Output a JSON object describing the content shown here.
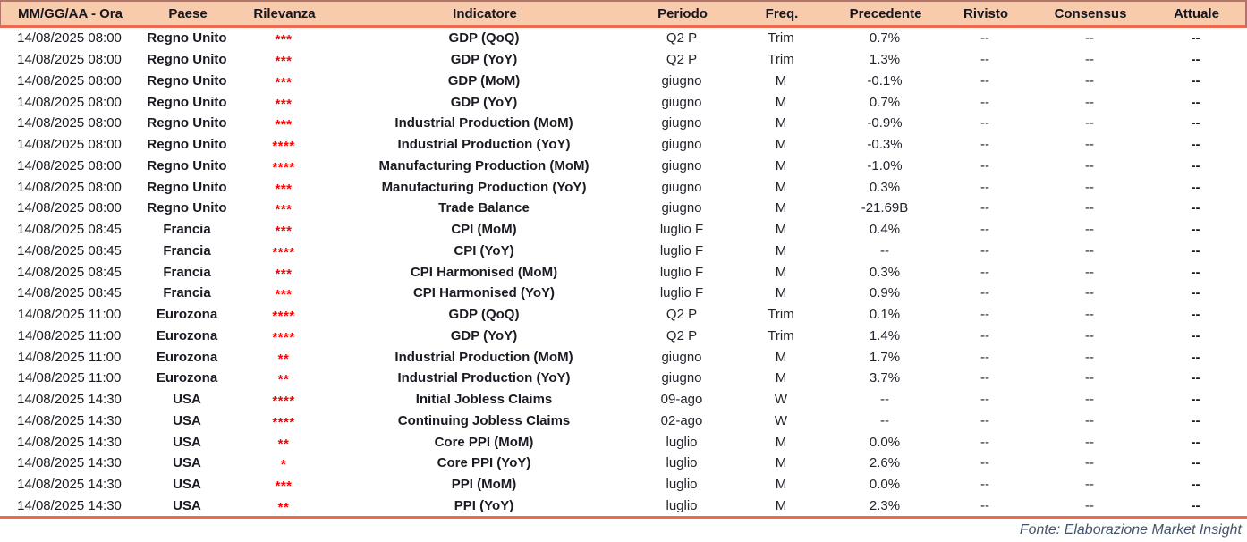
{
  "table": {
    "columns": [
      {
        "key": "datetime",
        "label": "MM/GG/AA - Ora"
      },
      {
        "key": "paese",
        "label": "Paese"
      },
      {
        "key": "rilevanza",
        "label": "Rilevanza"
      },
      {
        "key": "indicatore",
        "label": "Indicatore"
      },
      {
        "key": "periodo",
        "label": "Periodo"
      },
      {
        "key": "freq",
        "label": "Freq."
      },
      {
        "key": "precedente",
        "label": "Precedente"
      },
      {
        "key": "rivisto",
        "label": "Rivisto"
      },
      {
        "key": "consensus",
        "label": "Consensus"
      },
      {
        "key": "attuale",
        "label": "Attuale"
      }
    ],
    "rows": [
      {
        "datetime": "14/08/2025 08:00",
        "paese": "Regno Unito",
        "rilevanza": "***",
        "indicatore": "GDP (QoQ)",
        "periodo": "Q2 P",
        "freq": "Trim",
        "precedente": "0.7%",
        "rivisto": "--",
        "consensus": "--",
        "attuale": "--"
      },
      {
        "datetime": "14/08/2025 08:00",
        "paese": "Regno Unito",
        "rilevanza": "***",
        "indicatore": "GDP (YoY)",
        "periodo": "Q2 P",
        "freq": "Trim",
        "precedente": "1.3%",
        "rivisto": "--",
        "consensus": "--",
        "attuale": "--"
      },
      {
        "datetime": "14/08/2025 08:00",
        "paese": "Regno Unito",
        "rilevanza": "***",
        "indicatore": "GDP (MoM)",
        "periodo": "giugno",
        "freq": "M",
        "precedente": "-0.1%",
        "rivisto": "--",
        "consensus": "--",
        "attuale": "--"
      },
      {
        "datetime": "14/08/2025 08:00",
        "paese": "Regno Unito",
        "rilevanza": "***",
        "indicatore": "GDP (YoY)",
        "periodo": "giugno",
        "freq": "M",
        "precedente": "0.7%",
        "rivisto": "--",
        "consensus": "--",
        "attuale": "--"
      },
      {
        "datetime": "14/08/2025 08:00",
        "paese": "Regno Unito",
        "rilevanza": "***",
        "indicatore": "Industrial Production (MoM)",
        "periodo": "giugno",
        "freq": "M",
        "precedente": "-0.9%",
        "rivisto": "--",
        "consensus": "--",
        "attuale": "--"
      },
      {
        "datetime": "14/08/2025 08:00",
        "paese": "Regno Unito",
        "rilevanza": "****",
        "indicatore": "Industrial Production (YoY)",
        "periodo": "giugno",
        "freq": "M",
        "precedente": "-0.3%",
        "rivisto": "--",
        "consensus": "--",
        "attuale": "--"
      },
      {
        "datetime": "14/08/2025 08:00",
        "paese": "Regno Unito",
        "rilevanza": "****",
        "indicatore": "Manufacturing Production (MoM)",
        "periodo": "giugno",
        "freq": "M",
        "precedente": "-1.0%",
        "rivisto": "--",
        "consensus": "--",
        "attuale": "--"
      },
      {
        "datetime": "14/08/2025 08:00",
        "paese": "Regno Unito",
        "rilevanza": "***",
        "indicatore": "Manufacturing Production (YoY)",
        "periodo": "giugno",
        "freq": "M",
        "precedente": "0.3%",
        "rivisto": "--",
        "consensus": "--",
        "attuale": "--"
      },
      {
        "datetime": "14/08/2025 08:00",
        "paese": "Regno Unito",
        "rilevanza": "***",
        "indicatore": "Trade Balance",
        "periodo": "giugno",
        "freq": "M",
        "precedente": "-21.69B",
        "rivisto": "--",
        "consensus": "--",
        "attuale": "--"
      },
      {
        "datetime": "14/08/2025 08:45",
        "paese": "Francia",
        "rilevanza": "***",
        "indicatore": "CPI (MoM)",
        "periodo": "luglio F",
        "freq": "M",
        "precedente": "0.4%",
        "rivisto": "--",
        "consensus": "--",
        "attuale": "--"
      },
      {
        "datetime": "14/08/2025 08:45",
        "paese": "Francia",
        "rilevanza": "****",
        "indicatore": "CPI (YoY)",
        "periodo": "luglio F",
        "freq": "M",
        "precedente": "--",
        "rivisto": "--",
        "consensus": "--",
        "attuale": "--"
      },
      {
        "datetime": "14/08/2025 08:45",
        "paese": "Francia",
        "rilevanza": "***",
        "indicatore": "CPI Harmonised (MoM)",
        "periodo": "luglio F",
        "freq": "M",
        "precedente": "0.3%",
        "rivisto": "--",
        "consensus": "--",
        "attuale": "--"
      },
      {
        "datetime": "14/08/2025 08:45",
        "paese": "Francia",
        "rilevanza": "***",
        "indicatore": "CPI Harmonised (YoY)",
        "periodo": "luglio F",
        "freq": "M",
        "precedente": "0.9%",
        "rivisto": "--",
        "consensus": "--",
        "attuale": "--"
      },
      {
        "datetime": "14/08/2025 11:00",
        "paese": "Eurozona",
        "rilevanza": "****",
        "indicatore": "GDP (QoQ)",
        "periodo": "Q2 P",
        "freq": "Trim",
        "precedente": "0.1%",
        "rivisto": "--",
        "consensus": "--",
        "attuale": "--"
      },
      {
        "datetime": "14/08/2025 11:00",
        "paese": "Eurozona",
        "rilevanza": "****",
        "indicatore": "GDP (YoY)",
        "periodo": "Q2 P",
        "freq": "Trim",
        "precedente": "1.4%",
        "rivisto": "--",
        "consensus": "--",
        "attuale": "--"
      },
      {
        "datetime": "14/08/2025 11:00",
        "paese": "Eurozona",
        "rilevanza": "**",
        "indicatore": "Industrial Production (MoM)",
        "periodo": "giugno",
        "freq": "M",
        "precedente": "1.7%",
        "rivisto": "--",
        "consensus": "--",
        "attuale": "--"
      },
      {
        "datetime": "14/08/2025 11:00",
        "paese": "Eurozona",
        "rilevanza": "**",
        "indicatore": "Industrial Production (YoY)",
        "periodo": "giugno",
        "freq": "M",
        "precedente": "3.7%",
        "rivisto": "--",
        "consensus": "--",
        "attuale": "--"
      },
      {
        "datetime": "14/08/2025 14:30",
        "paese": "USA",
        "rilevanza": "****",
        "indicatore": "Initial Jobless Claims",
        "periodo": "09-ago",
        "freq": "W",
        "precedente": "--",
        "rivisto": "--",
        "consensus": "--",
        "attuale": "--"
      },
      {
        "datetime": "14/08/2025 14:30",
        "paese": "USA",
        "rilevanza": "****",
        "indicatore": "Continuing Jobless Claims",
        "periodo": "02-ago",
        "freq": "W",
        "precedente": "--",
        "rivisto": "--",
        "consensus": "--",
        "attuale": "--"
      },
      {
        "datetime": "14/08/2025 14:30",
        "paese": "USA",
        "rilevanza": "**",
        "indicatore": "Core PPI (MoM)",
        "periodo": "luglio",
        "freq": "M",
        "precedente": "0.0%",
        "rivisto": "--",
        "consensus": "--",
        "attuale": "--"
      },
      {
        "datetime": "14/08/2025 14:30",
        "paese": "USA",
        "rilevanza": "*",
        "indicatore": "Core PPI (YoY)",
        "periodo": "luglio",
        "freq": "M",
        "precedente": "2.6%",
        "rivisto": "--",
        "consensus": "--",
        "attuale": "--"
      },
      {
        "datetime": "14/08/2025 14:30",
        "paese": "USA",
        "rilevanza": "***",
        "indicatore": "PPI (MoM)",
        "periodo": "luglio",
        "freq": "M",
        "precedente": "0.0%",
        "rivisto": "--",
        "consensus": "--",
        "attuale": "--"
      },
      {
        "datetime": "14/08/2025 14:30",
        "paese": "USA",
        "rilevanza": "**",
        "indicatore": "PPI (YoY)",
        "periodo": "luglio",
        "freq": "M",
        "precedente": "2.3%",
        "rivisto": "--",
        "consensus": "--",
        "attuale": "--"
      }
    ]
  },
  "footer": {
    "source_label": "Fonte: Elaborazione Market Insight"
  },
  "colors": {
    "header_bg": "#F8CBAD",
    "accent_line": "#EC6A50",
    "header_border": "#B0746A",
    "star_red": "#FF0000",
    "body_text": "#1A1A22",
    "footer_text": "#44546A"
  }
}
